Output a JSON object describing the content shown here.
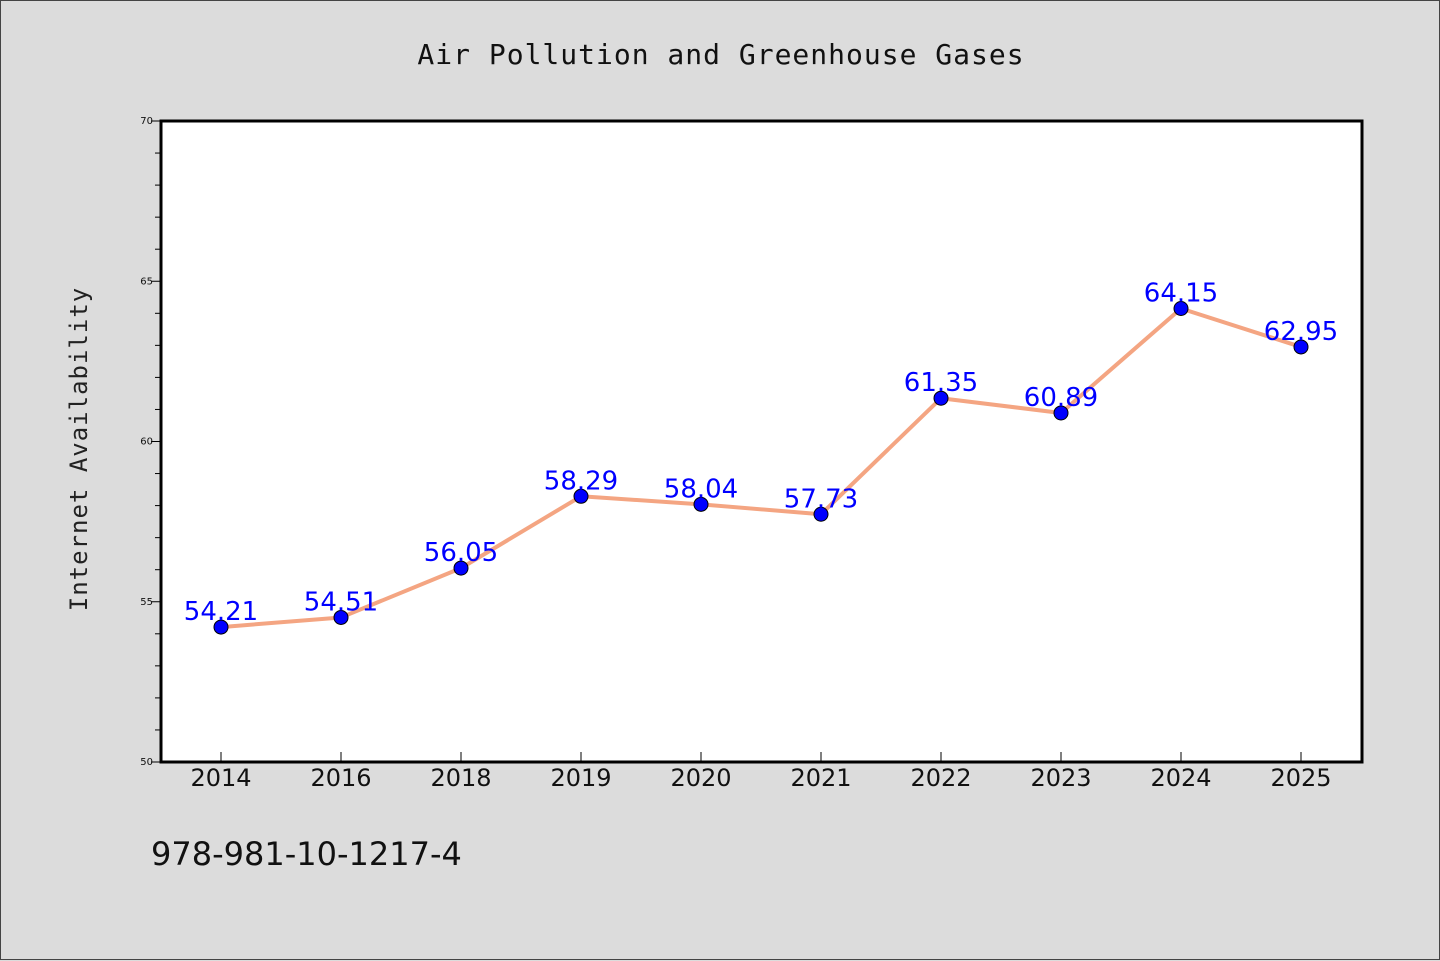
{
  "chart_data": {
    "type": "line",
    "title": "Air Pollution and Greenhouse Gases",
    "xlabel": "",
    "ylabel": "Internet Availability",
    "categories": [
      "2014",
      "2016",
      "2018",
      "2019",
      "2020",
      "2021",
      "2022",
      "2023",
      "2024",
      "2025"
    ],
    "series": [
      {
        "values": [
          54.21,
          54.51,
          56.05,
          58.29,
          58.04,
          57.73,
          61.35,
          60.89,
          64.15,
          62.95
        ],
        "labels": [
          "54.21",
          "54.51",
          "56.05",
          "58.29",
          "58.04",
          "57.73",
          "61.35",
          "60.89",
          "64.15",
          "62.95"
        ]
      }
    ],
    "ylim": [
      50,
      70
    ],
    "yticks": [
      "50",
      "55",
      "60",
      "65",
      "70"
    ],
    "grid": false,
    "legend": "none",
    "colors": {
      "line": "#f4a582",
      "marker": "#0000ff",
      "data_label": "#0000ff",
      "background": "#dcdcdc",
      "plot_background": "#ffffff"
    }
  },
  "footer": {
    "isbn": "978-981-10-1217-4"
  }
}
